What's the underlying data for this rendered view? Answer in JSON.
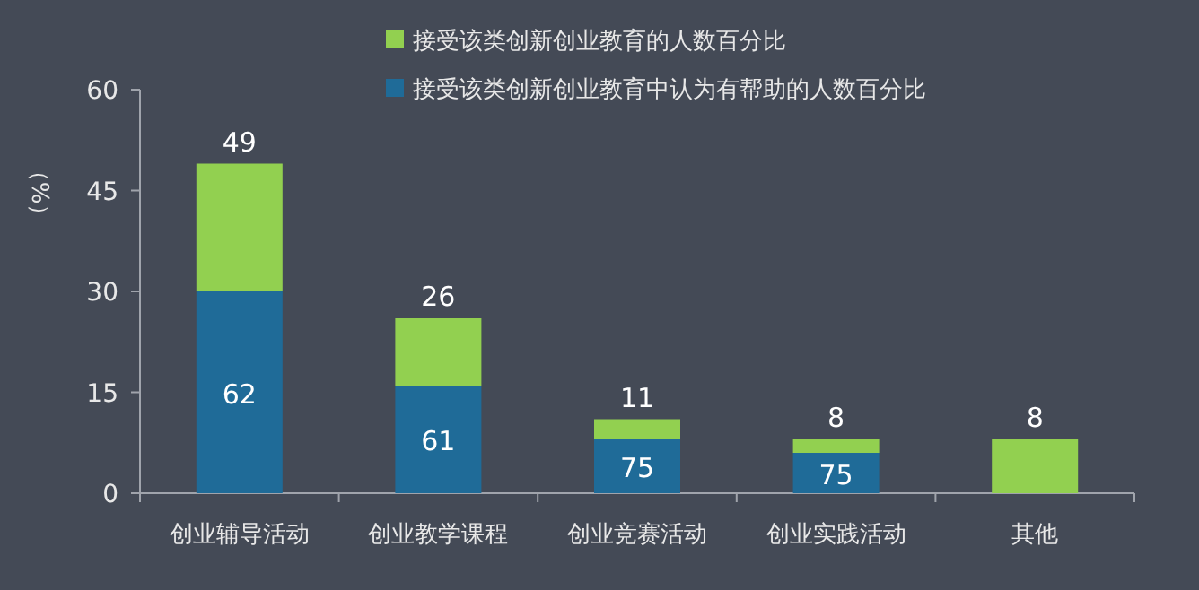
{
  "chart_data": {
    "type": "bar",
    "stacked": true,
    "ylabel": "（%）",
    "legend": "top",
    "categories": [
      "创业辅导活动",
      "创业教学课程",
      "创业竞赛活动",
      "创业实践活动",
      "其他"
    ],
    "series": [
      {
        "name": "接受该类创新创业教育中认为有帮助的人数百分比",
        "color": "#1f6b98",
        "values": [
          30,
          16,
          8,
          6,
          null
        ]
      },
      {
        "name": "接受该类创新创业教育的人数百分比",
        "color": "#92d050",
        "values": [
          19,
          10,
          3,
          2,
          8
        ]
      }
    ],
    "totals": [
      "49",
      "26",
      "11",
      "8",
      "8"
    ],
    "annotations": [
      "62",
      "61",
      "75",
      "75"
    ],
    "ylim": [
      0,
      60
    ],
    "yticks": [
      0,
      15,
      30,
      45,
      60
    ]
  }
}
